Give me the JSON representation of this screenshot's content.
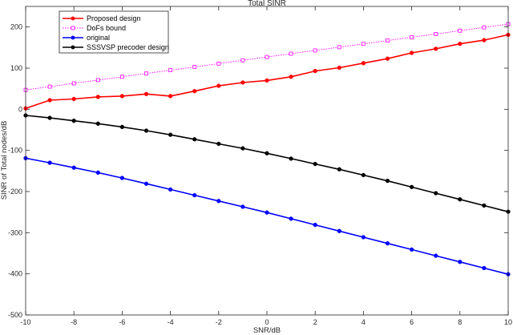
{
  "chart_data": {
    "type": "line",
    "title": "Total SINR",
    "xlabel": "SNR/dB",
    "ylabel": "SINR of Total nodes/dB",
    "xlim": [
      -10,
      10
    ],
    "ylim": [
      -500,
      250
    ],
    "xticks": [
      -10,
      -8,
      -6,
      -4,
      -2,
      0,
      2,
      4,
      6,
      8,
      10
    ],
    "yticks": [
      -500,
      -400,
      -300,
      -200,
      -100,
      0,
      100,
      200
    ],
    "grid": false,
    "legend_position": "top-left",
    "x": [
      -10,
      -9,
      -8,
      -7,
      -6,
      -5,
      -4,
      -3,
      -2,
      -1,
      0,
      1,
      2,
      3,
      4,
      5,
      6,
      7,
      8,
      9,
      10
    ],
    "series": [
      {
        "name": "Proposed design",
        "color": "#ff0000",
        "line_style": "solid",
        "marker": "circle",
        "values": [
          2,
          22,
          25,
          30,
          32,
          37,
          32,
          44,
          57,
          65,
          70,
          79,
          93,
          101,
          112,
          123,
          137,
          147,
          159,
          168,
          181
        ]
      },
      {
        "name": "DoFs bound",
        "color": "#ff00ff",
        "line_style": "dotted",
        "marker": "square",
        "values": [
          47,
          55,
          63,
          71,
          79,
          87,
          95,
          103,
          111,
          119,
          127,
          135,
          143,
          151,
          159,
          167,
          175,
          183,
          191,
          199,
          207
        ]
      },
      {
        "name": "original",
        "color": "#0000ff",
        "line_style": "solid",
        "marker": "circle",
        "values": [
          -119,
          -130,
          -142,
          -154,
          -167,
          -181,
          -195,
          -209,
          -223,
          -237,
          -251,
          -266,
          -281,
          -296,
          -311,
          -326,
          -341,
          -356,
          -371,
          -386,
          -401
        ]
      },
      {
        "name": "SSSVSP precoder design",
        "color": "#000000",
        "line_style": "solid",
        "marker": "circle",
        "values": [
          -15,
          -21,
          -28,
          -35,
          -43,
          -52,
          -62,
          -73,
          -84,
          -95,
          -107,
          -120,
          -133,
          -146,
          -160,
          -174,
          -189,
          -204,
          -219,
          -234,
          -249
        ]
      }
    ]
  }
}
